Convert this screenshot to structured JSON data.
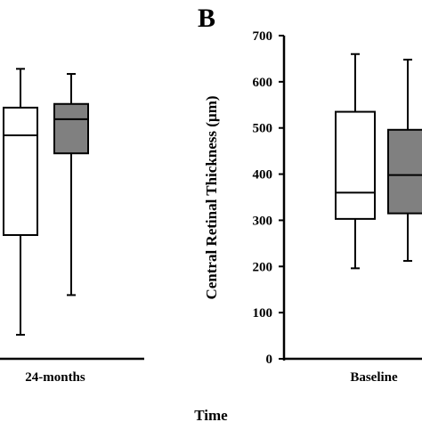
{
  "chart_data": [
    {
      "panel": "",
      "type": "box",
      "xlabel": "Time",
      "ylabel": "",
      "ylim": [
        0,
        700
      ],
      "categories": [
        "24-months"
      ],
      "series": [
        {
          "name": "",
          "color": "#ffffff",
          "boxes": [
            {
              "category": "24-months",
              "min": 52,
              "q1": 268,
              "median": 484,
              "q3": 544,
              "max": 628
            }
          ]
        },
        {
          "name": "",
          "color": "#808080",
          "boxes": [
            {
              "category": "24-months",
              "min": 138,
              "q1": 445,
              "median": 519,
              "q3": 552,
              "max": 617
            }
          ]
        }
      ]
    },
    {
      "panel": "B",
      "type": "box",
      "xlabel": "Time",
      "ylabel": "Central Retinal Thickness (µm)",
      "ylim": [
        0,
        700
      ],
      "yticks": [
        0,
        100,
        200,
        300,
        400,
        500,
        600,
        700
      ],
      "categories": [
        "Baseline"
      ],
      "series": [
        {
          "name": "",
          "color": "#ffffff",
          "boxes": [
            {
              "category": "Baseline",
              "min": 196,
              "q1": 303,
              "median": 360,
              "q3": 535,
              "max": 660
            }
          ]
        },
        {
          "name": "",
          "color": "#808080",
          "boxes": [
            {
              "category": "Baseline",
              "min": 212,
              "q1": 315,
              "median": 398,
              "q3": 496,
              "max": 648
            }
          ]
        }
      ]
    }
  ]
}
